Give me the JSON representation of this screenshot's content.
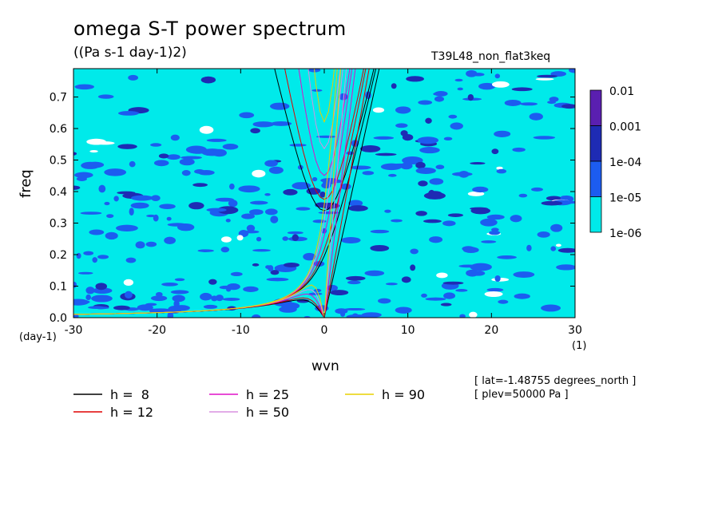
{
  "chart_data": {
    "type": "heatmap",
    "title": "omega S-T power spectrum",
    "subtitle": "((Pa s-1 day-1)2)",
    "run_name": "T39L48_non_flat3keq",
    "xlabel": "wvn",
    "ylabel": "freq",
    "x_unit": "(1)",
    "y_unit": "(day-1)",
    "xlim": [
      -30,
      30
    ],
    "ylim": [
      0,
      0.79
    ],
    "x_ticks": [
      "-30",
      "-20",
      "-10",
      "0",
      "10",
      "20",
      "30"
    ],
    "x_tick_values": [
      -30,
      -20,
      -10,
      0,
      10,
      20,
      30
    ],
    "y_ticks": [
      "0.0",
      "0.1",
      "0.2",
      "0.3",
      "0.4",
      "0.5",
      "0.6",
      "0.7"
    ],
    "y_tick_values": [
      0,
      0.1,
      0.2,
      0.3,
      0.4,
      0.5,
      0.6,
      0.7
    ],
    "colorbar": {
      "labels": [
        "0.01",
        "0.001",
        "1e-04",
        "1e-05",
        "1e-06"
      ],
      "levels": [
        0.01,
        0.001,
        0.0001,
        1e-05,
        1e-06
      ],
      "colors": [
        "#5a1fb0",
        "#1e2bb4",
        "#1c5cf0",
        "#3b8cf5",
        "#00eaea"
      ]
    },
    "dispersion_curves": [
      {
        "name": "h =  8",
        "h": 8,
        "color": "#000000"
      },
      {
        "name": "h = 12",
        "h": 12,
        "color": "#e00000"
      },
      {
        "name": "h = 25",
        "h": 25,
        "color": "#e010c8"
      },
      {
        "name": "h = 50",
        "h": 50,
        "color": "#d890e0"
      },
      {
        "name": "h = 90",
        "h": 90,
        "color": "#e8d000"
      }
    ],
    "info_lines": [
      "[ lat=-1.48755 degrees_north ]",
      "[ plev=50000 Pa ]"
    ]
  }
}
